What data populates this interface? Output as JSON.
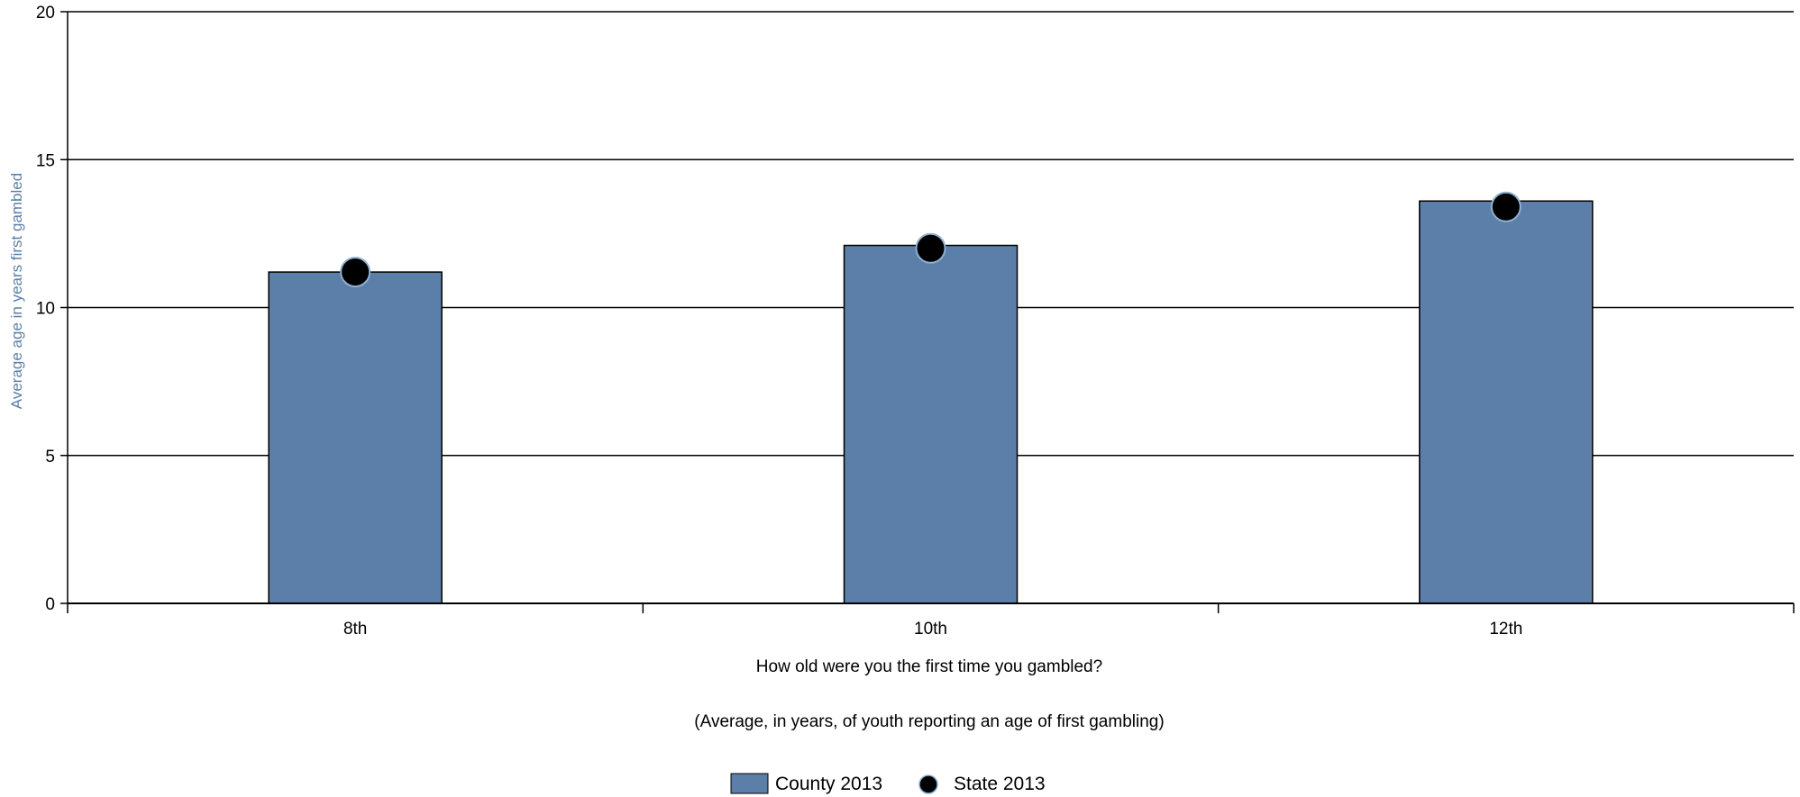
{
  "chart_data": {
    "type": "bar",
    "categories": [
      "8th",
      "10th",
      "12th"
    ],
    "series": [
      {
        "name": "County 2013",
        "kind": "bar",
        "values": [
          11.2,
          12.1,
          13.6
        ],
        "color": "#5b7fa8"
      },
      {
        "name": "State 2013",
        "kind": "point",
        "values": [
          11.2,
          12.0,
          13.4
        ],
        "color": "#000000"
      }
    ],
    "ylabel": "Average age in years first gambled",
    "xlabel": "How old were you the first time you gambled?",
    "subtitle": "(Average, in years, of youth reporting an age of first gambling)",
    "ylim": [
      0,
      20
    ],
    "yticks": [
      0,
      5,
      10,
      15,
      20
    ],
    "grid": true,
    "legend_position": "bottom-center"
  }
}
